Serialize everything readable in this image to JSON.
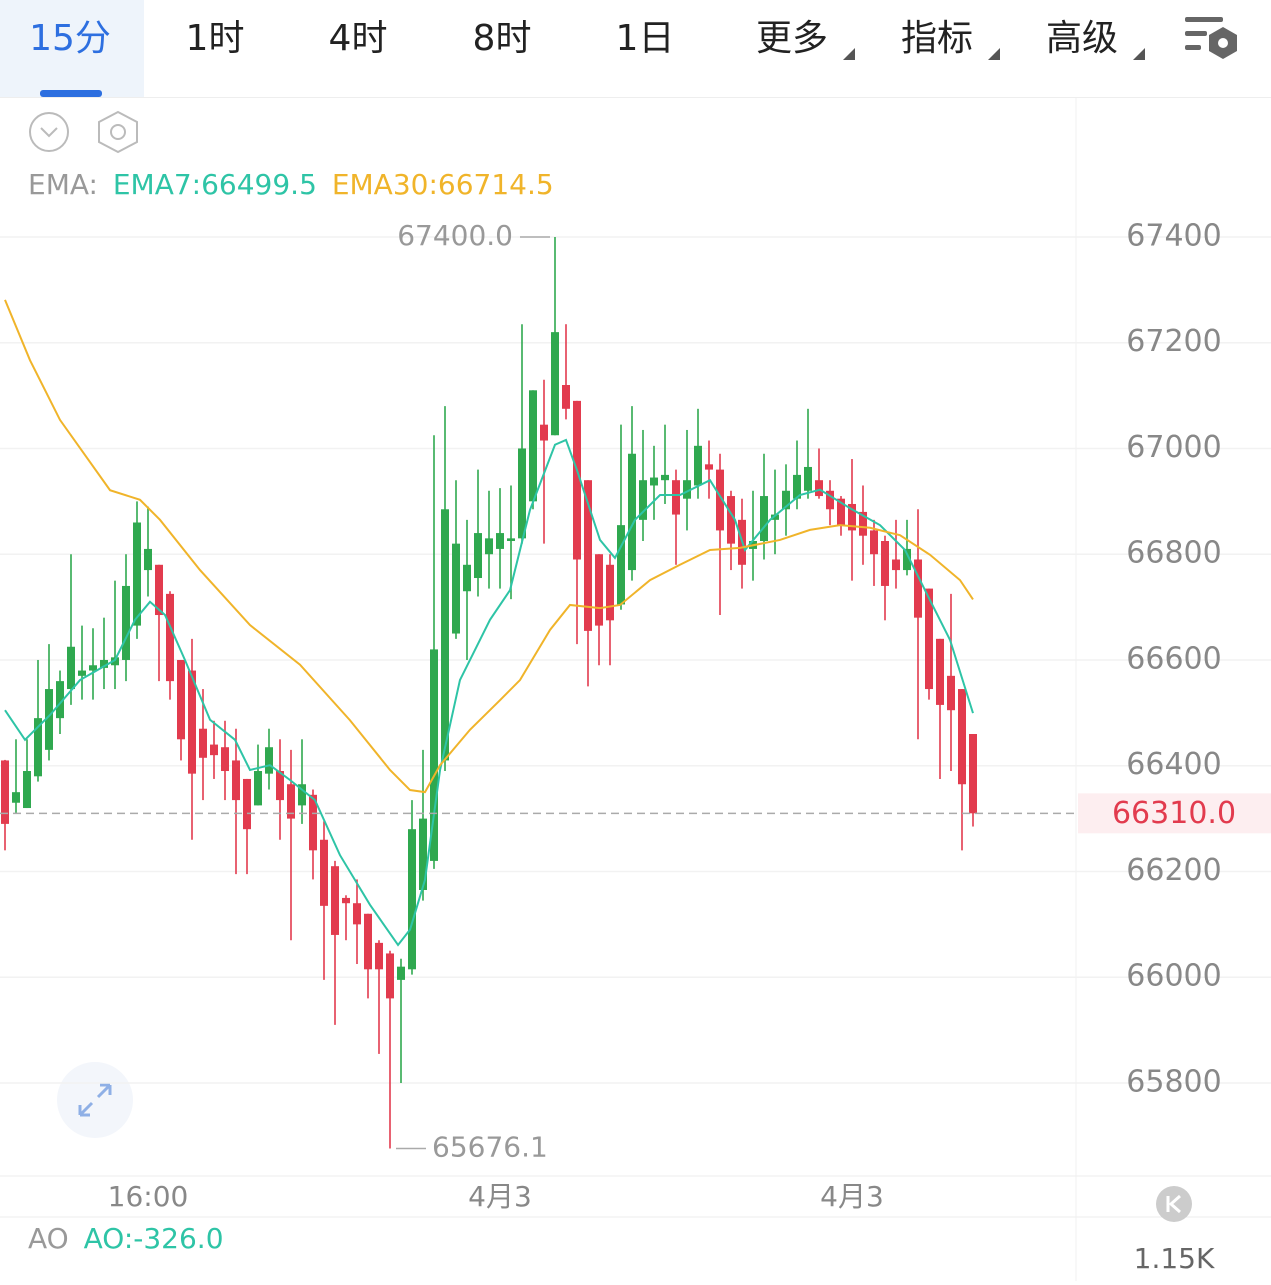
{
  "header": {
    "tabs": [
      "15分",
      "1时",
      "4时",
      "8时",
      "1日"
    ],
    "menus": [
      "更多",
      "指标",
      "高级"
    ]
  },
  "chart_data": {
    "type": "candlestick",
    "indicator_label": "EMA:",
    "ylim": [
      65626,
      67659
    ],
    "yticks": [
      65800,
      66000,
      66200,
      66400,
      66600,
      66800,
      67000,
      67200,
      67400
    ],
    "xticks": [
      {
        "value": 13,
        "label": "16:00"
      },
      {
        "value": 45,
        "label": "4月3"
      },
      {
        "value": 77,
        "label": "4月3"
      }
    ],
    "up_color": "#2fa84f",
    "down_color": "#e23b4e",
    "open": [
      66410,
      66330,
      66320,
      66380,
      66430,
      66490,
      66545,
      66570,
      66580,
      66585,
      66590,
      66600,
      66665,
      66770,
      66780,
      66725,
      66600,
      66580,
      66470,
      66440,
      66435,
      66410,
      66375,
      66325,
      66385,
      66390,
      66365,
      66325,
      66345,
      66260,
      66210,
      66150,
      66140,
      66120,
      66065,
      66045,
      65995,
      66015,
      66165,
      66220,
      66410,
      66650,
      66730,
      66755,
      66800,
      66810,
      66825,
      66830,
      66900,
      67045,
      67025,
      67120,
      67090,
      66940,
      66800,
      66780,
      66705,
      66770,
      66865,
      66930,
      66940,
      66940,
      66905,
      66930,
      66970,
      66960,
      66910,
      66865,
      66810,
      66825,
      66865,
      66885,
      66905,
      66920,
      66940,
      66920,
      66905,
      66895,
      66880,
      66845,
      66825,
      66790,
      66770,
      66790,
      66735,
      66640,
      66570,
      66545,
      66460
    ],
    "high": [
      66411,
      66450,
      66450,
      66600,
      66630,
      66580,
      66800,
      66665,
      66660,
      66680,
      66750,
      66800,
      66900,
      66890,
      66780,
      66730,
      66600,
      66640,
      66545,
      66485,
      66485,
      66470,
      66375,
      66440,
      66470,
      66450,
      66430,
      66450,
      66355,
      66295,
      66220,
      66155,
      66185,
      66120,
      66070,
      66050,
      66035,
      66335,
      66430,
      67025,
      67080,
      66940,
      66865,
      66960,
      66920,
      66925,
      66930,
      67235,
      67110,
      67130,
      67400,
      67235,
      67090,
      66940,
      66800,
      66800,
      67045,
      67080,
      67035,
      67005,
      67045,
      66960,
      67035,
      67075,
      67015,
      66990,
      66920,
      66905,
      66920,
      66990,
      66960,
      66970,
      67015,
      67075,
      67000,
      66940,
      66910,
      66980,
      66930,
      66865,
      66835,
      66865,
      66865,
      66885,
      66735,
      66640,
      66725,
      66545,
      66460
    ],
    "low": [
      66240,
      66310,
      66320,
      66370,
      66410,
      66460,
      66515,
      66525,
      66525,
      66545,
      66545,
      66560,
      66640,
      66720,
      66560,
      66525,
      66410,
      66260,
      66335,
      66375,
      66335,
      66195,
      66195,
      66325,
      66355,
      66260,
      66070,
      66290,
      66185,
      65995,
      65910,
      66070,
      66025,
      65960,
      65855,
      65676.1,
      65800,
      66005,
      66145,
      66205,
      66390,
      66640,
      66600,
      66720,
      66735,
      66735,
      66715,
      66820,
      66885,
      66820,
      67025,
      67055,
      66630,
      66550,
      66590,
      66590,
      66695,
      66750,
      66825,
      66865,
      66895,
      66780,
      66845,
      66905,
      66905,
      66685,
      66770,
      66735,
      66750,
      66790,
      66800,
      66835,
      66885,
      66905,
      66905,
      66855,
      66835,
      66750,
      66780,
      66740,
      66675,
      66735,
      66760,
      66450,
      66525,
      66375,
      66390,
      66240,
      66285
    ],
    "close": [
      66290,
      66350,
      66390,
      66490,
      66545,
      66560,
      66625,
      66580,
      66590,
      66600,
      66605,
      66740,
      66860,
      66810,
      66685,
      66560,
      66450,
      66385,
      66415,
      66420,
      66390,
      66335,
      66280,
      66390,
      66435,
      66335,
      66300,
      66365,
      66240,
      66135,
      66080,
      66140,
      66100,
      66015,
      66015,
      65960,
      66020,
      66280,
      66300,
      66620,
      66885,
      66820,
      66780,
      66840,
      66830,
      66840,
      66830,
      67000,
      67110,
      67015,
      67220,
      67075,
      66790,
      66655,
      66665,
      66675,
      66855,
      66990,
      66940,
      66945,
      66950,
      66875,
      66940,
      67005,
      66960,
      66845,
      66820,
      66780,
      66825,
      66910,
      66875,
      66920,
      66950,
      66965,
      66910,
      66885,
      66855,
      66845,
      66835,
      66800,
      66740,
      66770,
      66810,
      66680,
      66545,
      66515,
      66505,
      66365,
      66310
    ],
    "series": [
      {
        "name": "EMA7:66499.5",
        "color": "#2ec4a6",
        "x": [
          0,
          1.82,
          4.09,
          6.82,
          10,
          11.82,
          13.18,
          14.55,
          16.36,
          18.64,
          20.91,
          22.27,
          24.09,
          25.91,
          28.18,
          30.45,
          33.18,
          35.73,
          36.82,
          38.18,
          39.55,
          41.36,
          44.09,
          45.91,
          47.73,
          50,
          51,
          52,
          54.09,
          55.45,
          57.27,
          59.55,
          61.36,
          64.09,
          66.36,
          67.27,
          69.55,
          72.27,
          74.09,
          76.82,
          79.55,
          81.82,
          84.09,
          85.91,
          88
        ],
        "values": [
          66505,
          66449,
          66496,
          66562,
          66600,
          66676,
          66710,
          66685,
          66600,
          66487,
          66449,
          66392,
          66401,
          66373,
          66335,
          66231,
          66137,
          66061,
          66090,
          66184,
          66392,
          66562,
          66676,
          66732,
          66884,
          67007,
          67016,
          66959,
          66827,
          66793,
          66865,
          66912,
          66912,
          66940,
          66865,
          66808,
          66865,
          66912,
          66922,
          66887,
          66855,
          66808,
          66713,
          66638,
          66499.5
        ]
      },
      {
        "name": "EMA30:66714.5",
        "color": "#f0b42a",
        "x": [
          0,
          2.27,
          5,
          9.55,
          12.27,
          14.09,
          17.73,
          22.27,
          26.82,
          31.36,
          35,
          36.82,
          38.18,
          39.55,
          42.27,
          45,
          46.82,
          49.55,
          51.36,
          54.09,
          55.91,
          58.64,
          61.36,
          64.09,
          66.82,
          70.45,
          73.18,
          75.91,
          78.64,
          81.36,
          84.09,
          86.82,
          88
        ],
        "values": [
          67281,
          67167,
          67054,
          66921,
          66903,
          66865,
          66770,
          66666,
          66591,
          66486,
          66392,
          66354,
          66350,
          66401,
          66468,
          66524,
          66562,
          66657,
          66704,
          66698,
          66704,
          66751,
          66780,
          66808,
          66812,
          66827,
          66846,
          66855,
          66850,
          66836,
          66799,
          66751,
          66714.5
        ]
      }
    ],
    "annotations": [
      {
        "value": 67400,
        "label": "67400.0"
      },
      {
        "value": 65676.1,
        "label": "65676.1"
      }
    ],
    "last_price": {
      "value": 66310,
      "label": "66310.0"
    },
    "sub_indicator": {
      "label": "AO",
      "value_text": "AO:-326.0",
      "axis_label": "1.15K"
    }
  }
}
